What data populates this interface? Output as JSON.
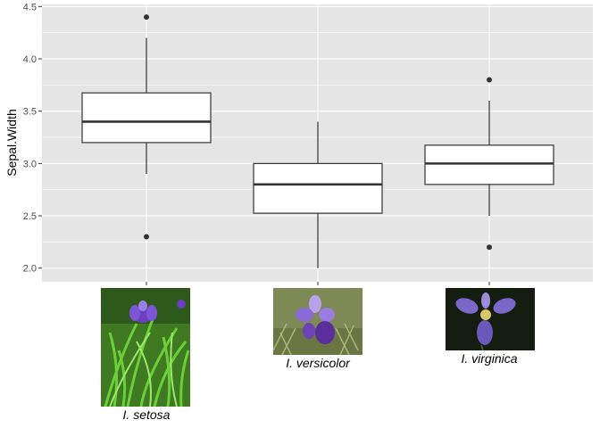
{
  "chart_data": {
    "type": "boxplot",
    "ylabel": "Sepal.Width",
    "ylim": [
      1.87,
      4.52
    ],
    "yticks": [
      2.0,
      2.5,
      3.0,
      3.5,
      4.0,
      4.5
    ],
    "ytick_labels": [
      "2.0",
      "2.5",
      "3.0",
      "3.5",
      "4.0",
      "4.5"
    ],
    "categories": [
      "I. setosa",
      "I. versicolor",
      "I. virginica"
    ],
    "grid": true,
    "boxes": [
      {
        "category": "I. setosa",
        "whisker_low": 2.9,
        "q1": 3.2,
        "median": 3.4,
        "q3": 3.675,
        "whisker_high": 4.2,
        "outliers": [
          4.4,
          2.3
        ]
      },
      {
        "category": "I. versicolor",
        "whisker_low": 2.0,
        "q1": 2.525,
        "median": 2.8,
        "q3": 3.0,
        "whisker_high": 3.4,
        "outliers": []
      },
      {
        "category": "I. virginica",
        "whisker_low": 2.5,
        "q1": 2.8,
        "median": 3.0,
        "q3": 3.175,
        "whisker_high": 3.6,
        "outliers": [
          3.8,
          2.2
        ]
      }
    ],
    "x_axis_images": [
      "iris-setosa-photo",
      "iris-versicolor-photo",
      "iris-virginica-photo"
    ],
    "colors": {
      "panel": "#e5e5e5",
      "grid": "#ffffff",
      "box_fill": "#ffffff",
      "box_line": "#333333"
    }
  }
}
